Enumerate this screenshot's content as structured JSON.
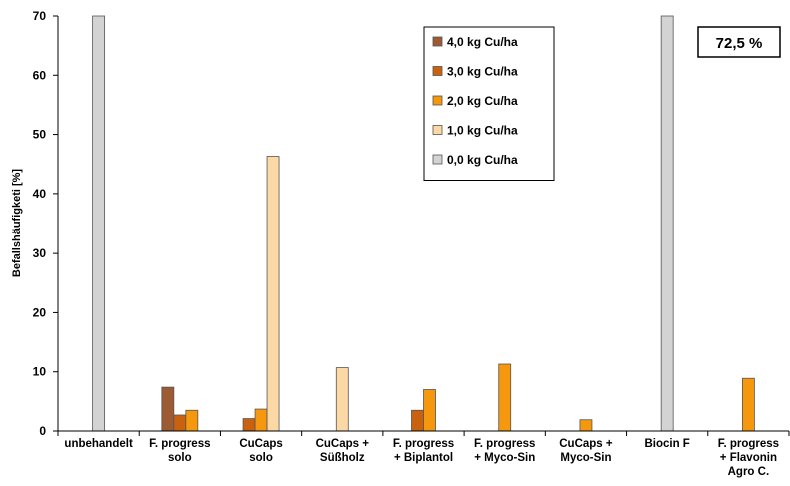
{
  "chart_data": {
    "type": "bar",
    "ylabel": "Befallshäufigketi [%]",
    "ylim": [
      0,
      70
    ],
    "yticks": [
      0,
      10,
      20,
      30,
      40,
      50,
      60,
      70
    ],
    "grid": false,
    "legend_position": "top-center",
    "categories": [
      [
        "unbehandelt"
      ],
      [
        "F. progress",
        "solo"
      ],
      [
        "CuCaps",
        "solo"
      ],
      [
        "CuCaps +",
        "Süßholz"
      ],
      [
        "F. progress",
        "+ Biplantol"
      ],
      [
        "F. progress",
        "+ Myco-Sin"
      ],
      [
        "CuCaps +",
        "Myco-Sin"
      ],
      [
        "Biocin F"
      ],
      [
        "F. progress",
        "+ Flavonin",
        "Agro C."
      ]
    ],
    "series": [
      {
        "name": "4,0 kg Cu/ha",
        "color": "#9c5b33",
        "values": [
          null,
          7.4,
          null,
          null,
          null,
          null,
          null,
          null,
          null
        ]
      },
      {
        "name": "3,0 kg Cu/ha",
        "color": "#c9610e",
        "values": [
          null,
          2.7,
          2.1,
          null,
          3.5,
          null,
          null,
          null,
          null
        ]
      },
      {
        "name": "2,0 kg Cu/ha",
        "color": "#f5980d",
        "values": [
          null,
          3.5,
          3.7,
          null,
          7.0,
          11.3,
          1.9,
          null,
          8.9
        ]
      },
      {
        "name": "1,0 kg Cu/ha",
        "color": "#fcd9a4",
        "values": [
          null,
          null,
          46.3,
          10.7,
          null,
          null,
          null,
          null,
          null
        ]
      },
      {
        "name": "0,0 kg Cu/ha",
        "color": "#d3d3d3",
        "values": [
          72.5,
          null,
          null,
          null,
          null,
          null,
          null,
          72.5,
          null
        ]
      }
    ],
    "annotation": "72,5 %"
  }
}
